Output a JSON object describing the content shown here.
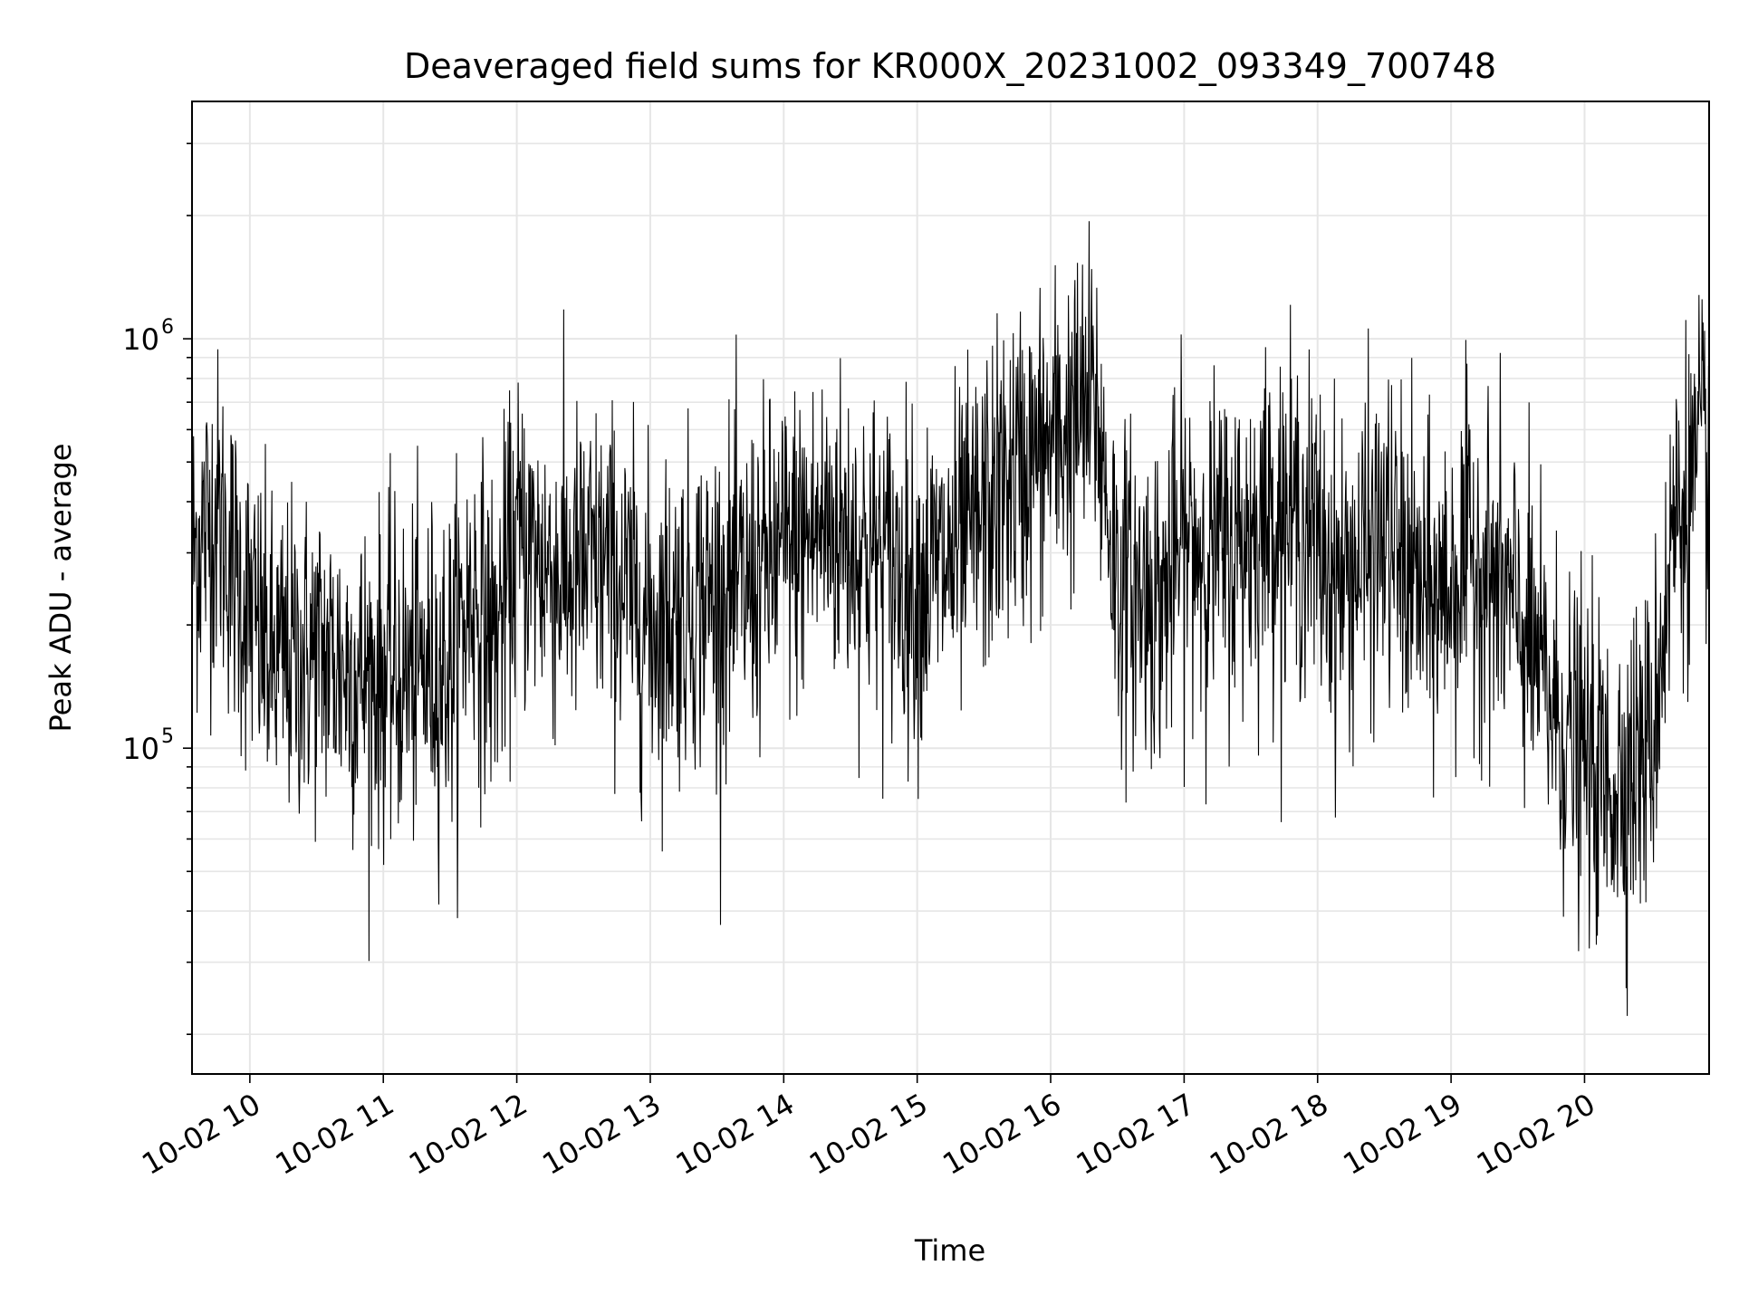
{
  "chart_data": {
    "type": "line",
    "title": "Deaveraged field sums for KR000X_20231002_093349_700748",
    "xlabel": "Time",
    "ylabel": "Peak ADU - average",
    "y_scale": "log",
    "ylim": [
      16000,
      3800000
    ],
    "xlim": [
      "2023-10-02 09:34",
      "2023-10-02 20:56"
    ],
    "grid": true,
    "legend": "none",
    "line_color": "#000000",
    "x_ticks": [
      "10-02 10",
      "10-02 11",
      "10-02 12",
      "10-02 13",
      "10-02 14",
      "10-02 15",
      "10-02 16",
      "10-02 17",
      "10-02 18",
      "10-02 19",
      "10-02 20"
    ],
    "x_tick_times": [
      "2023-10-02 10:00",
      "2023-10-02 11:00",
      "2023-10-02 12:00",
      "2023-10-02 13:00",
      "2023-10-02 14:00",
      "2023-10-02 15:00",
      "2023-10-02 16:00",
      "2023-10-02 17:00",
      "2023-10-02 18:00",
      "2023-10-02 19:00",
      "2023-10-02 20:00"
    ],
    "y_major_ticks": [
      {
        "value": 100000,
        "base": "10",
        "exp": "5"
      },
      {
        "value": 1000000,
        "base": "10",
        "exp": "6"
      }
    ],
    "series": [
      {
        "x": [
          "2023-10-02 09:34",
          "2023-10-02 09:45",
          "2023-10-02 09:55",
          "2023-10-02 10:10",
          "2023-10-02 10:30",
          "2023-10-02 10:50",
          "2023-10-02 11:10",
          "2023-10-02 11:30",
          "2023-10-02 11:40",
          "2023-10-02 11:50",
          "2023-10-02 12:00",
          "2023-10-02 12:20",
          "2023-10-02 12:40",
          "2023-10-02 13:00",
          "2023-10-02 13:20",
          "2023-10-02 13:40",
          "2023-10-02 14:00",
          "2023-10-02 14:20",
          "2023-10-02 14:40",
          "2023-10-02 15:00",
          "2023-10-02 15:20",
          "2023-10-02 15:40",
          "2023-10-02 16:00",
          "2023-10-02 16:20",
          "2023-10-02 16:30",
          "2023-10-02 16:50",
          "2023-10-02 17:00",
          "2023-10-02 17:20",
          "2023-10-02 17:40",
          "2023-10-02 17:55",
          "2023-10-02 18:10",
          "2023-10-02 18:30",
          "2023-10-02 18:50",
          "2023-10-02 19:10",
          "2023-10-02 19:30",
          "2023-10-02 19:50",
          "2023-10-02 20:10",
          "2023-10-02 20:30",
          "2023-10-02 20:40",
          "2023-10-02 20:56"
        ],
        "values": [
          300000,
          380000,
          250000,
          160000,
          170000,
          150000,
          150000,
          160000,
          240000,
          180000,
          320000,
          260000,
          280000,
          200000,
          230000,
          240000,
          300000,
          350000,
          300000,
          250000,
          300000,
          450000,
          550000,
          700000,
          250000,
          230000,
          320000,
          300000,
          380000,
          350000,
          250000,
          330000,
          220000,
          300000,
          210000,
          110000,
          80000,
          100000,
          350000,
          550000
        ]
      }
    ]
  }
}
